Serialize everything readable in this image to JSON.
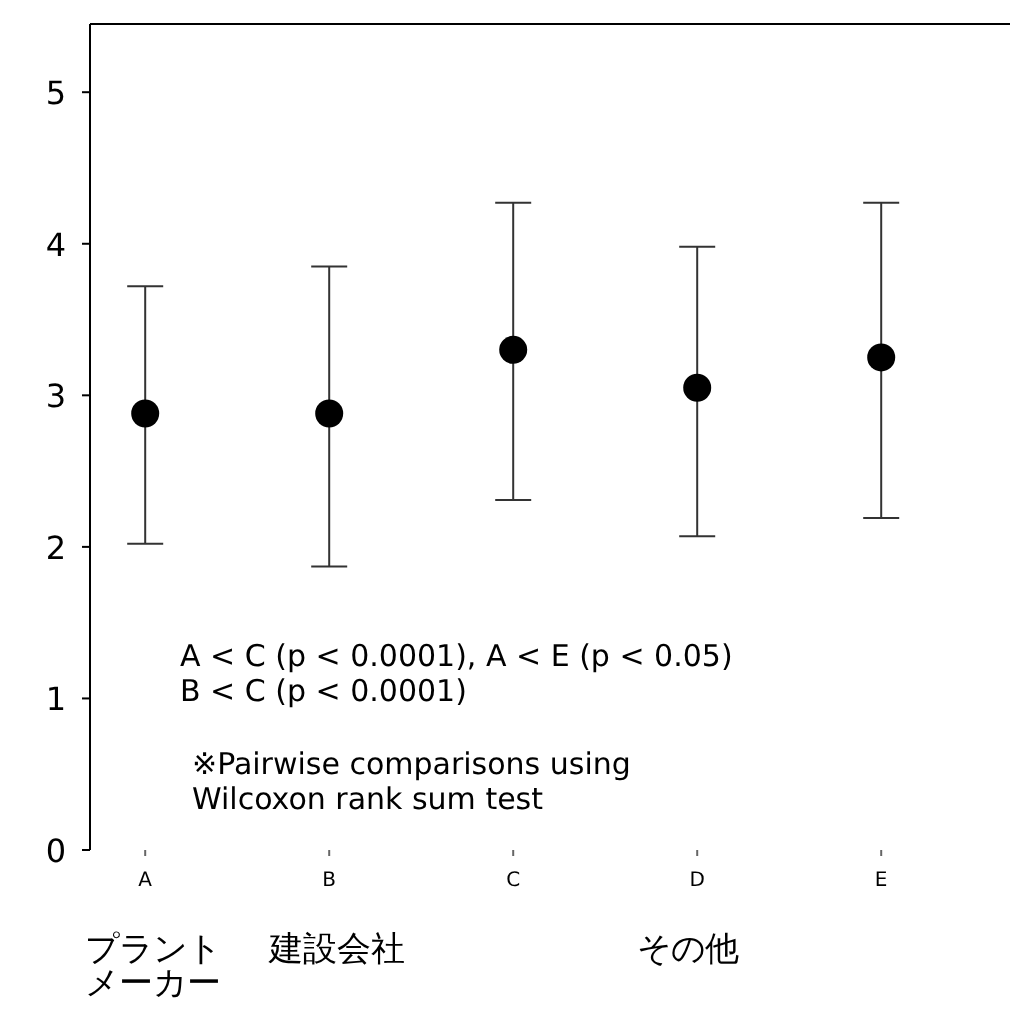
{
  "chart_data": {
    "type": "scatter",
    "categories": [
      "A",
      "B",
      "C",
      "D",
      "E"
    ],
    "series": [
      {
        "color": "#000000",
        "values": [
          2.88,
          2.88,
          3.3,
          3.05,
          3.25
        ],
        "errors": [
          [
            2.02,
            3.72
          ],
          [
            1.87,
            3.85
          ],
          [
            2.31,
            4.27
          ],
          [
            2.07,
            3.98
          ],
          [
            2.19,
            4.27
          ]
        ]
      }
    ],
    "ylim": [
      0,
      5.45
    ],
    "yticks": [
      0,
      1,
      2,
      3,
      4,
      5
    ],
    "marker": "circle",
    "grid": false,
    "annotations": [
      "プラントメーカー",
      "建設会社",
      "その他",
      "A < C (p < 0.0001), A < E (p < 0.05)\nB < C (p < 0.0001)",
      "※Pairwise comparisons using\nWilcoxon rank sum test"
    ]
  }
}
